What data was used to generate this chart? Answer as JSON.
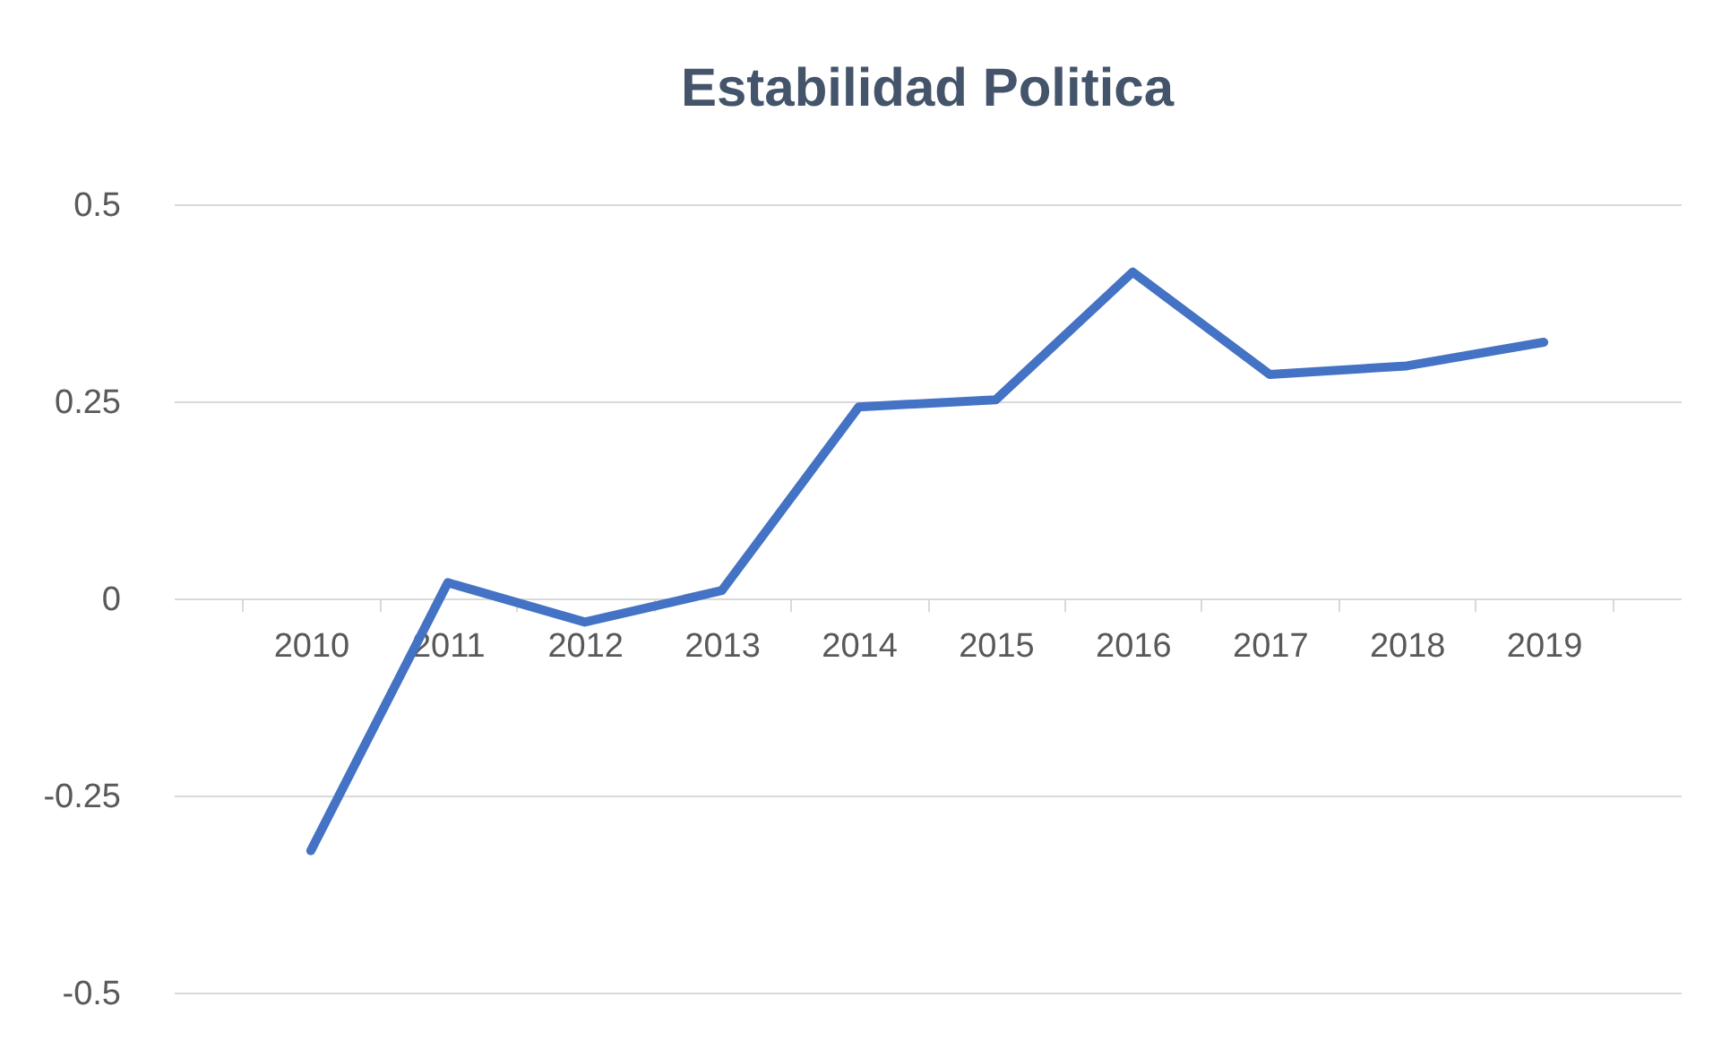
{
  "chart_data": {
    "type": "line",
    "title": "Estabilidad Politica",
    "categories": [
      "2010",
      "2011",
      "2012",
      "2013",
      "2014",
      "2015",
      "2016",
      "2017",
      "2018",
      "2019"
    ],
    "series": [
      {
        "color": "#4472c4",
        "values": [
          -0.32,
          0.02,
          -0.03,
          0.01,
          0.243,
          0.252,
          0.414,
          0.284,
          0.295,
          0.325
        ]
      }
    ],
    "ylim": [
      -0.5,
      0.5
    ],
    "yticks": [
      -0.5,
      -0.25,
      0,
      0.25,
      0.5
    ],
    "grid": "y",
    "marker": "none",
    "line_style": "solid"
  }
}
